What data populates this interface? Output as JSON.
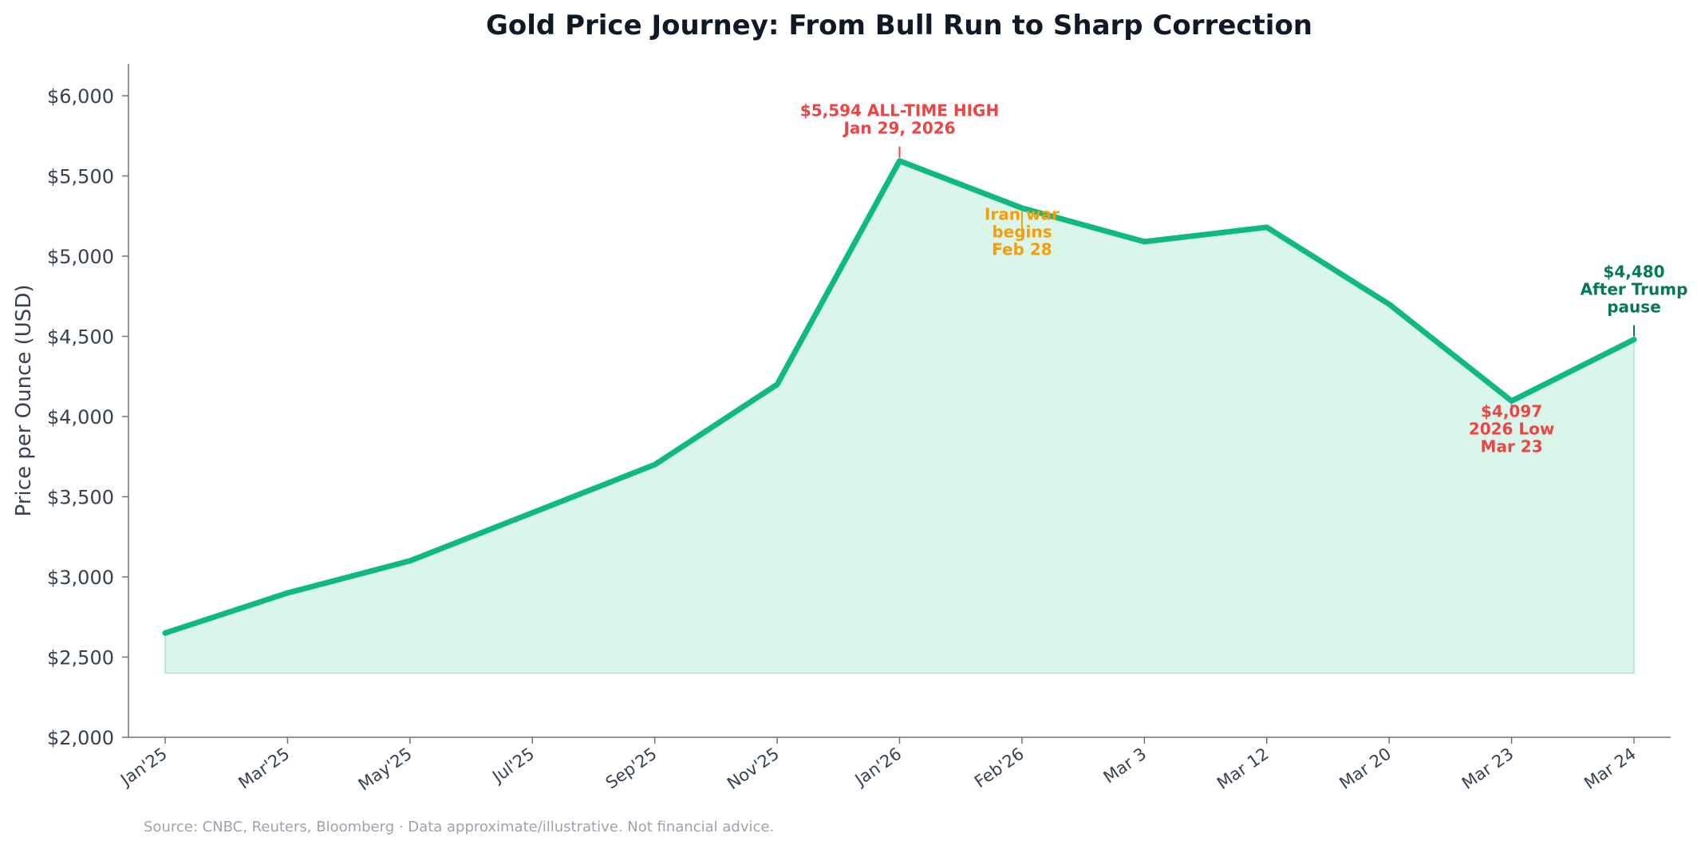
{
  "chart_data": {
    "type": "area",
    "title": "Gold Price Journey: From Bull Run to Sharp Correction",
    "xlabel": "",
    "ylabel": "Price per Ounce (USD)",
    "ylim": [
      2000,
      6200
    ],
    "yticks": [
      2000,
      2500,
      3000,
      3500,
      4000,
      4500,
      5000,
      5500,
      6000
    ],
    "ytick_labels": [
      "$2,000",
      "$2,500",
      "$3,000",
      "$3,500",
      "$4,000",
      "$4,500",
      "$5,000",
      "$5,500",
      "$6,000"
    ],
    "fill_baseline": 2400,
    "categories": [
      "Jan'25",
      "Mar'25",
      "May'25",
      "Jul'25",
      "Sep'25",
      "Nov'25",
      "Jan'26",
      "Feb'26",
      "Mar 3",
      "Mar 12",
      "Mar 20",
      "Mar 23",
      "Mar 24"
    ],
    "series": [
      {
        "name": "Gold price",
        "values": [
          2650,
          2900,
          3100,
          3400,
          3700,
          4200,
          5594,
          5300,
          5090,
          5180,
          4700,
          4097,
          4480
        ]
      }
    ],
    "annotations": [
      {
        "index": 6,
        "lines": [
          "$5,594 ALL-TIME HIGH",
          "Jan 29, 2026"
        ],
        "color": "#ef4444",
        "placement": "above"
      },
      {
        "index": 7,
        "lines": [
          "Iran war",
          "begins",
          "Feb 28"
        ],
        "color": "#f59e0b",
        "placement": "below"
      },
      {
        "index": 11,
        "lines": [
          "$4,097",
          "2026 Low",
          "Mar 23"
        ],
        "color": "#ef4444",
        "placement": "below"
      },
      {
        "index": 12,
        "lines": [
          "$4,480",
          "After Trump",
          "pause"
        ],
        "color": "#047857",
        "placement": "above"
      }
    ],
    "source": "Source: CNBC, Reuters, Bloomberg · Data approximate/illustrative. Not financial advice.",
    "colors": {
      "line": "#10b981",
      "fill": "#d1f4e6",
      "axis": "#6b7280"
    },
    "grid": false,
    "legend": "none"
  }
}
